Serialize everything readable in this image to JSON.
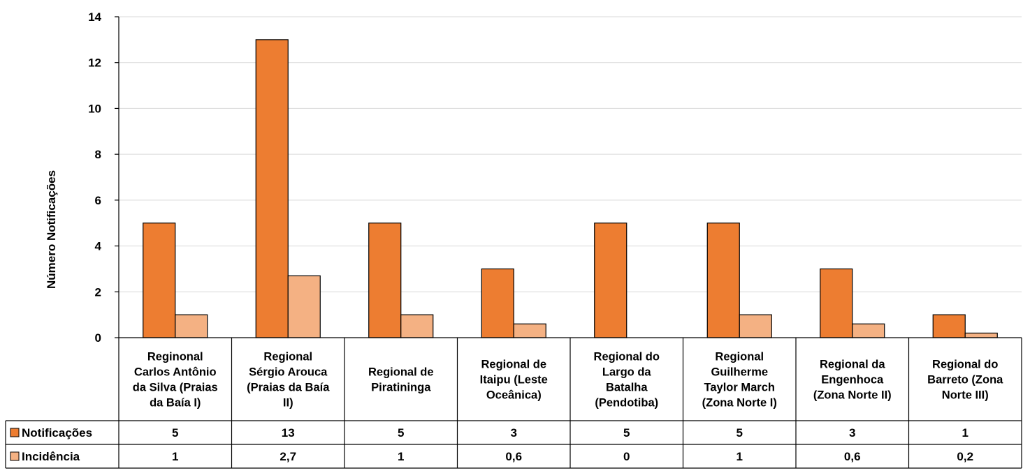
{
  "chart_data": {
    "type": "bar",
    "ylabel": "Número Notificações",
    "ylim": [
      0,
      14
    ],
    "yticks": [
      "0",
      "2",
      "4",
      "6",
      "8",
      "10",
      "12",
      "14"
    ],
    "grid": true,
    "categories": [
      "Regional Carlos Antônio da Silva (Praias da Baía I)",
      "Regional Sérgio Arouca (Praias da Baía II)",
      "Regional de Piratininga",
      "Regional de Itaipu (Leste Oceânica)",
      "Regional do Largo da Batalha (Pendotiba)",
      "Regional Guilherme Taylor March (Zona Norte I)",
      "Regional da Engenhoca (Zona Norte II)",
      "Regional do Barreto (Zona Norte III)"
    ],
    "category_lines": [
      [
        "Reginonal",
        "Carlos Antônio",
        "da Silva (Praias",
        "da Baía I)"
      ],
      [
        "Regional",
        "Sérgio Arouca",
        "(Praias da Baía",
        "II)"
      ],
      [
        "Regional de",
        "Piratininga"
      ],
      [
        "Regional de",
        "Itaipu (Leste",
        "Oceânica)"
      ],
      [
        "Regional do",
        "Largo da",
        "Batalha",
        "(Pendotiba)"
      ],
      [
        "Regional",
        "Guilherme",
        "Taylor March",
        "(Zona Norte I)"
      ],
      [
        "Regional da",
        "Engenhoca",
        "(Zona Norte II)"
      ],
      [
        "Regional do",
        "Barreto (Zona",
        "Norte III)"
      ]
    ],
    "series": [
      {
        "name": "Notificações",
        "color": "#ED7D31",
        "values": [
          5,
          13,
          5,
          3,
          5,
          5,
          3,
          1
        ],
        "labels": [
          "5",
          "13",
          "5",
          "3",
          "5",
          "5",
          "3",
          "1"
        ]
      },
      {
        "name": "Incidência",
        "color": "#F4B183",
        "values": [
          1,
          2.7,
          1,
          0.6,
          0,
          1,
          0.6,
          0.2
        ],
        "labels": [
          "1",
          "2,7",
          "1",
          "0,6",
          "0",
          "1",
          "0,6",
          "0,2"
        ]
      }
    ],
    "legend": "data-table"
  }
}
